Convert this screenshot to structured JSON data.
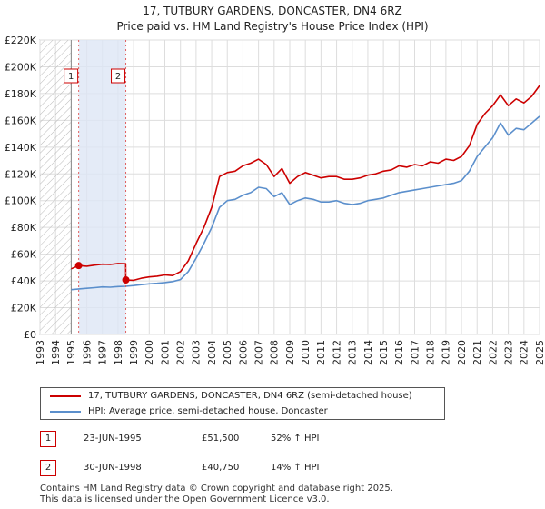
{
  "chart_data": {
    "type": "line",
    "title": "17, TUTBURY GARDENS, DONCASTER, DN4 6RZ",
    "subtitle": "Price paid vs. HM Land Registry's House Price Index (HPI)",
    "ylim": [
      0,
      220000
    ],
    "xlim": [
      1993,
      2025
    ],
    "y_ticks": [
      0,
      20000,
      40000,
      60000,
      80000,
      100000,
      120000,
      140000,
      160000,
      180000,
      200000,
      220000
    ],
    "y_tick_labels": [
      "£0",
      "£20K",
      "£40K",
      "£60K",
      "£80K",
      "£100K",
      "£120K",
      "£140K",
      "£160K",
      "£180K",
      "£200K",
      "£220K"
    ],
    "x_ticks": [
      1993,
      1994,
      1995,
      1996,
      1997,
      1998,
      1999,
      2000,
      2001,
      2002,
      2003,
      2004,
      2005,
      2006,
      2007,
      2008,
      2009,
      2010,
      2011,
      2012,
      2013,
      2014,
      2015,
      2016,
      2017,
      2018,
      2019,
      2020,
      2021,
      2022,
      2023,
      2024,
      2025
    ],
    "x_tick_labels": [
      "1993",
      "1994",
      "1995",
      "1996",
      "1997",
      "1998",
      "1999",
      "2000",
      "2001",
      "2002",
      "2003",
      "2004",
      "2005",
      "2006",
      "2007",
      "2008",
      "2009",
      "2010",
      "2011",
      "2012",
      "2013",
      "2014",
      "2015",
      "2016",
      "2017",
      "2018",
      "2019",
      "2020",
      "2021",
      "2022",
      "2023",
      "2024",
      "2025"
    ],
    "grid": true,
    "hatched_region": [
      1993,
      1995
    ],
    "shaded_region": [
      1995.48,
      1998.5
    ],
    "sale_markers": [
      {
        "label": "1",
        "x": 1995.48,
        "y": 51500
      },
      {
        "label": "2",
        "x": 1998.5,
        "y": 40750
      }
    ],
    "series": [
      {
        "name": "17, TUTBURY GARDENS, DONCASTER, DN4 6RZ (semi-detached house)",
        "color": "#cc0000",
        "x": [
          1995.0,
          1995.48,
          1996.0,
          1996.5,
          1997.0,
          1997.5,
          1998.0,
          1998.49,
          1998.5,
          1999.0,
          1999.5,
          2000.0,
          2000.5,
          2001.0,
          2001.5,
          2002.0,
          2002.5,
          2003.0,
          2003.5,
          2004.0,
          2004.5,
          2005.0,
          2005.5,
          2006.0,
          2006.5,
          2007.0,
          2007.5,
          2008.0,
          2008.5,
          2009.0,
          2009.5,
          2010.0,
          2010.5,
          2011.0,
          2011.5,
          2012.0,
          2012.5,
          2013.0,
          2013.5,
          2014.0,
          2014.5,
          2015.0,
          2015.5,
          2016.0,
          2016.5,
          2017.0,
          2017.5,
          2018.0,
          2018.5,
          2019.0,
          2019.5,
          2020.0,
          2020.5,
          2021.0,
          2021.5,
          2022.0,
          2022.5,
          2023.0,
          2023.5,
          2024.0,
          2024.5,
          2025.0
        ],
        "y": [
          49000,
          51500,
          51000,
          51800,
          52500,
          52300,
          53000,
          52800,
          40750,
          40500,
          42000,
          43000,
          43500,
          44500,
          44000,
          47000,
          55000,
          68000,
          80000,
          95000,
          118000,
          121000,
          122000,
          126000,
          128000,
          131000,
          127000,
          118000,
          124000,
          113000,
          118000,
          121000,
          119000,
          117000,
          118000,
          118000,
          116000,
          116000,
          117000,
          119000,
          120000,
          122000,
          123000,
          126000,
          125000,
          127000,
          126000,
          129000,
          128000,
          131000,
          130000,
          133000,
          141000,
          157000,
          165000,
          171000,
          179000,
          171000,
          176000,
          173000,
          178000,
          186000
        ]
      },
      {
        "name": "HPI: Average price, semi-detached house, Doncaster",
        "color": "#5b8fcc",
        "x": [
          1995.0,
          1995.5,
          1996.0,
          1996.5,
          1997.0,
          1997.5,
          1998.0,
          1998.5,
          1999.0,
          1999.5,
          2000.0,
          2000.5,
          2001.0,
          2001.5,
          2002.0,
          2002.5,
          2003.0,
          2003.5,
          2004.0,
          2004.5,
          2005.0,
          2005.5,
          2006.0,
          2006.5,
          2007.0,
          2007.5,
          2008.0,
          2008.5,
          2009.0,
          2009.5,
          2010.0,
          2010.5,
          2011.0,
          2011.5,
          2012.0,
          2012.5,
          2013.0,
          2013.5,
          2014.0,
          2014.5,
          2015.0,
          2015.5,
          2016.0,
          2016.5,
          2017.0,
          2017.5,
          2018.0,
          2018.5,
          2019.0,
          2019.5,
          2020.0,
          2020.5,
          2021.0,
          2021.5,
          2022.0,
          2022.5,
          2023.0,
          2023.5,
          2024.0,
          2024.5,
          2025.0
        ],
        "y": [
          33500,
          34000,
          34500,
          35000,
          35500,
          35300,
          35800,
          36000,
          36500,
          37200,
          37800,
          38200,
          38800,
          39500,
          41000,
          47000,
          57000,
          68000,
          80000,
          95000,
          100000,
          101000,
          104000,
          106000,
          110000,
          109000,
          103000,
          106000,
          97000,
          100000,
          102000,
          101000,
          99000,
          99000,
          100000,
          98000,
          97000,
          98000,
          100000,
          101000,
          102000,
          104000,
          106000,
          107000,
          108000,
          109000,
          110000,
          111000,
          112000,
          113000,
          115000,
          122000,
          133000,
          140000,
          147000,
          158000,
          149000,
          154000,
          153000,
          158000,
          163000
        ]
      }
    ]
  },
  "legend": {
    "property_label": "17, TUTBURY GARDENS, DONCASTER, DN4 6RZ (semi-detached house)",
    "hpi_label": "HPI: Average price, semi-detached house, Doncaster"
  },
  "sales": [
    {
      "marker": "1",
      "date": "23-JUN-1995",
      "price": "£51,500",
      "hpi": "52% ↑ HPI"
    },
    {
      "marker": "2",
      "date": "30-JUN-1998",
      "price": "£40,750",
      "hpi": "14% ↑ HPI"
    }
  ],
  "footer": {
    "line1": "Contains HM Land Registry data © Crown copyright and database right 2025.",
    "line2": "This data is licensed under the Open Government Licence v3.0."
  }
}
